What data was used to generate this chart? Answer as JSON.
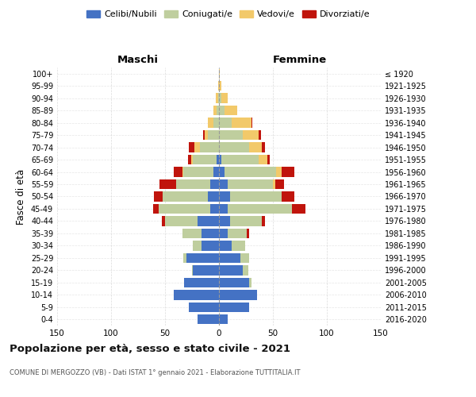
{
  "age_groups": [
    "0-4",
    "5-9",
    "10-14",
    "15-19",
    "20-24",
    "25-29",
    "30-34",
    "35-39",
    "40-44",
    "45-49",
    "50-54",
    "55-59",
    "60-64",
    "65-69",
    "70-74",
    "75-79",
    "80-84",
    "85-89",
    "90-94",
    "95-99",
    "100+"
  ],
  "birth_years": [
    "2016-2020",
    "2011-2015",
    "2006-2010",
    "2001-2005",
    "1996-2000",
    "1991-1995",
    "1986-1990",
    "1981-1985",
    "1976-1980",
    "1971-1975",
    "1966-1970",
    "1961-1965",
    "1956-1960",
    "1951-1955",
    "1946-1950",
    "1941-1945",
    "1936-1940",
    "1931-1935",
    "1926-1930",
    "1921-1925",
    "≤ 1920"
  ],
  "colors": {
    "celibi": "#4472C4",
    "coniugati": "#BFCE9E",
    "vedovi": "#F2C96A",
    "divorziati": "#C0140C"
  },
  "males": {
    "celibi": [
      20,
      28,
      42,
      32,
      24,
      30,
      16,
      16,
      20,
      8,
      10,
      8,
      5,
      2,
      0,
      0,
      0,
      0,
      0,
      0,
      0
    ],
    "coniugati": [
      0,
      0,
      0,
      0,
      1,
      3,
      8,
      18,
      30,
      48,
      42,
      32,
      28,
      22,
      18,
      10,
      5,
      2,
      1,
      0,
      0
    ],
    "vedovi": [
      0,
      0,
      0,
      0,
      0,
      0,
      0,
      0,
      0,
      0,
      0,
      0,
      1,
      2,
      5,
      3,
      5,
      3,
      2,
      1,
      0
    ],
    "divorziati": [
      0,
      0,
      0,
      0,
      0,
      0,
      0,
      0,
      3,
      5,
      8,
      15,
      8,
      3,
      5,
      2,
      0,
      0,
      0,
      0,
      0
    ]
  },
  "females": {
    "nubili": [
      8,
      28,
      35,
      28,
      22,
      20,
      12,
      8,
      10,
      8,
      10,
      8,
      5,
      2,
      0,
      0,
      0,
      0,
      0,
      0,
      0
    ],
    "coniugate": [
      0,
      0,
      0,
      2,
      5,
      8,
      12,
      18,
      30,
      60,
      48,
      42,
      48,
      35,
      28,
      22,
      12,
      5,
      2,
      0,
      0
    ],
    "vedove": [
      0,
      0,
      0,
      0,
      0,
      0,
      0,
      0,
      0,
      0,
      0,
      2,
      5,
      8,
      12,
      15,
      18,
      12,
      6,
      2,
      1
    ],
    "divorziate": [
      0,
      0,
      0,
      0,
      0,
      0,
      0,
      2,
      3,
      12,
      12,
      8,
      12,
      2,
      3,
      2,
      1,
      0,
      0,
      0,
      0
    ]
  },
  "xlim": 150,
  "title": "Popolazione per età, sesso e stato civile - 2021",
  "subtitle": "COMUNE DI MERGOZZO (VB) - Dati ISTAT 1° gennaio 2021 - Elaborazione TUTTITALIA.IT",
  "ylabel_left": "Fasce di età",
  "label_maschi": "Maschi",
  "label_femmine": "Femmine",
  "legend_labels": [
    "Celibi/Nubili",
    "Coniugati/e",
    "Vedovi/e",
    "Divorziati/e"
  ],
  "background": "#FFFFFF",
  "grid_color": "#CCCCCC"
}
